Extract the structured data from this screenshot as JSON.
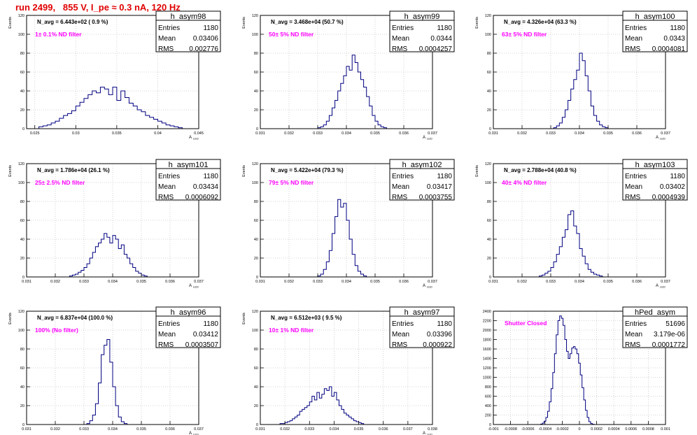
{
  "title": "run 2499,   855 V, I_pe ≈ 0.3 nA, 120 Hz",
  "colors": {
    "title": "#e00000",
    "hist": "#000080",
    "annotation": "#ff00ff",
    "grid": "#c8c8c8"
  },
  "chart_data": [
    {
      "type": "bar",
      "name": "h_asym98",
      "navg": "N_avg = 6.443e+02 ( 0.9 %)",
      "filter": "1± 0.1% ND filter",
      "stats": {
        "entries": "1180",
        "mean": "0.03406",
        "rms": "0.002776"
      },
      "stat_labels": [
        "Entries",
        "Mean",
        "RMS"
      ],
      "xlabel": "A",
      "xlabel_sub": "LED",
      "ylabel": "Events",
      "xlim": [
        0.024,
        0.045
      ],
      "ylim": [
        0,
        120
      ],
      "xticks": [
        0.025,
        0.03,
        0.035,
        0.04,
        0.045
      ],
      "xtick_labels": [
        "0.025",
        "0.03",
        "0.035",
        "0.04",
        "0.045"
      ],
      "yticks": [
        0,
        20,
        40,
        60,
        80,
        100,
        120
      ],
      "ytick_labels": [
        "0",
        "20",
        "40",
        "60",
        "80",
        "100",
        "120"
      ],
      "bin_start": 0.0255,
      "bin_width": 0.0005,
      "values": [
        2,
        3,
        4,
        6,
        8,
        11,
        14,
        16,
        19,
        24,
        28,
        32,
        36,
        40,
        38,
        44,
        42,
        36,
        44,
        30,
        40,
        33,
        27,
        24,
        20,
        18,
        14,
        12,
        10,
        8,
        6,
        4,
        3,
        2,
        1
      ],
      "grid": true
    },
    {
      "type": "bar",
      "name": "h_asym99",
      "navg": "N_avg = 3.468e+04 (50.7 %)",
      "filter": "50± 5% ND filter",
      "stats": {
        "entries": "1180",
        "mean": "0.0344",
        "rms": "0.0004257"
      },
      "stat_labels": [
        "Entries",
        "Mean",
        "RMS"
      ],
      "xlabel": "A",
      "xlabel_sub": "LED",
      "ylabel": "Events",
      "xlim": [
        0.031,
        0.037
      ],
      "ylim": [
        0,
        120
      ],
      "xticks": [
        0.031,
        0.032,
        0.033,
        0.034,
        0.035,
        0.036,
        0.037
      ],
      "xtick_labels": [
        "0.031",
        "0.032",
        "0.033",
        "0.034",
        "0.035",
        "0.036",
        "0.037"
      ],
      "yticks": [
        0,
        20,
        40,
        60,
        80,
        100,
        120
      ],
      "ytick_labels": [
        "0",
        "20",
        "40",
        "60",
        "80",
        "100",
        "120"
      ],
      "bin_start": 0.033,
      "bin_width": 0.0001,
      "values": [
        1,
        2,
        4,
        8,
        14,
        22,
        30,
        40,
        48,
        56,
        66,
        62,
        78,
        70,
        60,
        52,
        44,
        34,
        24,
        14,
        8,
        4,
        2,
        1
      ],
      "grid": true
    },
    {
      "type": "bar",
      "name": "h_asym100",
      "navg": "N_avg = 4.326e+04 (63.3 %)",
      "filter": "63± 5% ND filter",
      "stats": {
        "entries": "1180",
        "mean": "0.0343",
        "rms": "0.0004081"
      },
      "stat_labels": [
        "Entries",
        "Mean",
        "RMS"
      ],
      "xlabel": "A",
      "xlabel_sub": "LED",
      "ylabel": "Events",
      "xlim": [
        0.031,
        0.037
      ],
      "ylim": [
        0,
        120
      ],
      "xticks": [
        0.031,
        0.032,
        0.033,
        0.034,
        0.035,
        0.036,
        0.037
      ],
      "xtick_labels": [
        "0.031",
        "0.032",
        "0.033",
        "0.034",
        "0.035",
        "0.036",
        "0.037"
      ],
      "yticks": [
        0,
        20,
        40,
        60,
        80,
        100,
        120
      ],
      "ytick_labels": [
        "0",
        "20",
        "40",
        "60",
        "80",
        "100",
        "120"
      ],
      "bin_start": 0.0331,
      "bin_width": 0.0001,
      "values": [
        1,
        3,
        6,
        12,
        20,
        30,
        42,
        52,
        62,
        80,
        72,
        56,
        40,
        24,
        14,
        8,
        4,
        2,
        1
      ],
      "grid": true
    },
    {
      "type": "bar",
      "name": "h_asym101",
      "navg": "N_avg = 1.786e+04 (26.1 %)",
      "filter": "25± 2.5% ND filter",
      "stats": {
        "entries": "1180",
        "mean": "0.03434",
        "rms": "0.0006092"
      },
      "stat_labels": [
        "Entries",
        "Mean",
        "RMS"
      ],
      "xlabel": "A",
      "xlabel_sub": "LED",
      "ylabel": "Events",
      "xlim": [
        0.031,
        0.037
      ],
      "ylim": [
        0,
        120
      ],
      "xticks": [
        0.031,
        0.032,
        0.033,
        0.034,
        0.035,
        0.036,
        0.037
      ],
      "xtick_labels": [
        "0.031",
        "0.032",
        "0.033",
        "0.034",
        "0.035",
        "0.036",
        "0.037"
      ],
      "yticks": [
        0,
        20,
        40,
        60,
        80,
        100,
        120
      ],
      "ytick_labels": [
        "0",
        "20",
        "40",
        "60",
        "80",
        "100",
        "120"
      ],
      "bin_start": 0.0325,
      "bin_width": 0.0001,
      "values": [
        1,
        2,
        3,
        5,
        7,
        10,
        14,
        20,
        26,
        32,
        36,
        40,
        46,
        42,
        36,
        44,
        40,
        30,
        34,
        24,
        20,
        14,
        10,
        6,
        4,
        2,
        1
      ],
      "grid": true
    },
    {
      "type": "bar",
      "name": "h_asym102",
      "navg": "N_avg = 5.422e+04 (79.3 %)",
      "filter": "79± 5% ND filter",
      "stats": {
        "entries": "1180",
        "mean": "0.03417",
        "rms": "0.0003755"
      },
      "stat_labels": [
        "Entries",
        "Mean",
        "RMS"
      ],
      "xlabel": "A",
      "xlabel_sub": "LED",
      "ylabel": "Events",
      "xlim": [
        0.031,
        0.037
      ],
      "ylim": [
        0,
        120
      ],
      "xticks": [
        0.031,
        0.032,
        0.033,
        0.034,
        0.035,
        0.036,
        0.037
      ],
      "xtick_labels": [
        "0.031",
        "0.032",
        "0.033",
        "0.034",
        "0.035",
        "0.036",
        "0.037"
      ],
      "yticks": [
        0,
        20,
        40,
        60,
        80,
        100,
        120
      ],
      "ytick_labels": [
        "0",
        "20",
        "40",
        "60",
        "80",
        "100",
        "120"
      ],
      "bin_start": 0.033,
      "bin_width": 0.0001,
      "values": [
        1,
        3,
        8,
        16,
        28,
        46,
        64,
        82,
        74,
        78,
        60,
        40,
        24,
        12,
        6,
        3,
        1
      ],
      "grid": true
    },
    {
      "type": "bar",
      "name": "h_asym103",
      "navg": "N_avg = 2.788e+04 (40.8 %)",
      "filter": "40± 4% ND filter",
      "stats": {
        "entries": "1180",
        "mean": "0.03402",
        "rms": "0.0004939"
      },
      "stat_labels": [
        "Entries",
        "Mean",
        "RMS"
      ],
      "xlabel": "A",
      "xlabel_sub": "LED",
      "ylabel": "Events",
      "xlim": [
        0.031,
        0.037
      ],
      "ylim": [
        0,
        120
      ],
      "xticks": [
        0.031,
        0.032,
        0.033,
        0.034,
        0.035,
        0.036,
        0.037
      ],
      "xtick_labels": [
        "0.031",
        "0.032",
        "0.033",
        "0.034",
        "0.035",
        "0.036",
        "0.037"
      ],
      "yticks": [
        0,
        20,
        40,
        60,
        80,
        100,
        120
      ],
      "ytick_labels": [
        "0",
        "20",
        "40",
        "60",
        "80",
        "100",
        "120"
      ],
      "bin_start": 0.0326,
      "bin_width": 0.0001,
      "values": [
        1,
        2,
        4,
        6,
        10,
        16,
        24,
        32,
        42,
        50,
        66,
        70,
        54,
        46,
        30,
        22,
        14,
        8,
        5,
        3,
        2,
        1
      ],
      "grid": true
    },
    {
      "type": "bar",
      "name": "h_asym96",
      "navg": "N_avg = 6.837e+04 (100.0 %)",
      "filter": "100% (No filter)",
      "stats": {
        "entries": "1180",
        "mean": "0.03412",
        "rms": "0.0003507"
      },
      "stat_labels": [
        "Entries",
        "Mean",
        "RMS"
      ],
      "xlabel": "A",
      "xlabel_sub": "LED",
      "ylabel": "Events",
      "xlim": [
        0.031,
        0.037
      ],
      "ylim": [
        0,
        120
      ],
      "xticks": [
        0.031,
        0.032,
        0.033,
        0.034,
        0.035,
        0.036,
        0.037
      ],
      "xtick_labels": [
        "0.031",
        "0.032",
        "0.033",
        "0.034",
        "0.035",
        "0.036",
        "0.037"
      ],
      "yticks": [
        0,
        20,
        40,
        60,
        80,
        100,
        120
      ],
      "ytick_labels": [
        "0",
        "20",
        "40",
        "60",
        "80",
        "100",
        "120"
      ],
      "bin_start": 0.0331,
      "bin_width": 0.0001,
      "values": [
        1,
        4,
        10,
        22,
        44,
        74,
        84,
        90,
        66,
        40,
        20,
        8,
        3,
        1
      ],
      "grid": true
    },
    {
      "type": "bar",
      "name": "h_asym97",
      "navg": "N_avg = 6.512e+03 ( 9.5 %)",
      "filter": "10± 1% ND filter",
      "stats": {
        "entries": "1180",
        "mean": "0.03396",
        "rms": "0.000922"
      },
      "stat_labels": [
        "Entries",
        "Mean",
        "RMS"
      ],
      "xlabel": "A",
      "xlabel_sub": "LED",
      "ylabel": "Events",
      "xlim": [
        0.031,
        0.038
      ],
      "ylim": [
        0,
        120
      ],
      "xticks": [
        0.031,
        0.032,
        0.033,
        0.034,
        0.035,
        0.036,
        0.037,
        0.038
      ],
      "xtick_labels": [
        "0.031",
        "0.032",
        "0.033",
        "0.034",
        "0.035",
        "0.036",
        "0.037",
        "0.038"
      ],
      "yticks": [
        0,
        20,
        40,
        60,
        80,
        100,
        120
      ],
      "ytick_labels": [
        "0",
        "20",
        "40",
        "60",
        "80",
        "100",
        "120"
      ],
      "bin_start": 0.0318,
      "bin_width": 0.0001,
      "values": [
        1,
        1,
        2,
        3,
        4,
        6,
        8,
        10,
        14,
        16,
        18,
        20,
        24,
        30,
        26,
        34,
        28,
        32,
        38,
        36,
        40,
        30,
        34,
        26,
        20,
        16,
        12,
        10,
        8,
        6,
        4,
        3,
        2,
        1
      ],
      "grid": true
    },
    {
      "type": "bar",
      "name": "hPed_asym",
      "navg": "",
      "filter": "Shutter Closed",
      "stats": {
        "entries": "51696",
        "mean": "3.179e-06",
        "rms": "0.0001772"
      },
      "stat_labels": [
        "Entries",
        "Mean",
        "RMS"
      ],
      "xlabel": "",
      "xlabel_sub": "",
      "ylabel": "",
      "xlim": [
        -0.001,
        0.001
      ],
      "ylim": [
        0,
        2400
      ],
      "xticks": [
        -0.001,
        -0.0008,
        -0.0006,
        -0.0004,
        -0.0002,
        0,
        0.0002,
        0.0004,
        0.0006,
        0.0008,
        0.001
      ],
      "xtick_labels": [
        "-0.001",
        "-0.0008",
        "-0.0006",
        "-0.0004",
        "-0.0002",
        "0",
        "0.0002",
        "0.0004",
        "0.0006",
        "0.0008",
        "0.001"
      ],
      "yticks": [
        0,
        200,
        400,
        600,
        800,
        1000,
        1200,
        1400,
        1600,
        1800,
        2000,
        2200,
        2400
      ],
      "ytick_labels": [
        "0",
        "200",
        "400",
        "600",
        "800",
        "1000",
        "1200",
        "1400",
        "1600",
        "1800",
        "2000",
        "2200",
        "2400"
      ],
      "bin_start": -0.00045,
      "bin_width": 2e-05,
      "values": [
        10,
        30,
        70,
        150,
        280,
        480,
        760,
        1100,
        1500,
        1900,
        2200,
        2300,
        2250,
        2100,
        1800,
        1550,
        1400,
        1500,
        1620,
        1650,
        1600,
        1500,
        1300,
        1050,
        780,
        520,
        300,
        150,
        60,
        20,
        5
      ],
      "grid": true
    }
  ]
}
